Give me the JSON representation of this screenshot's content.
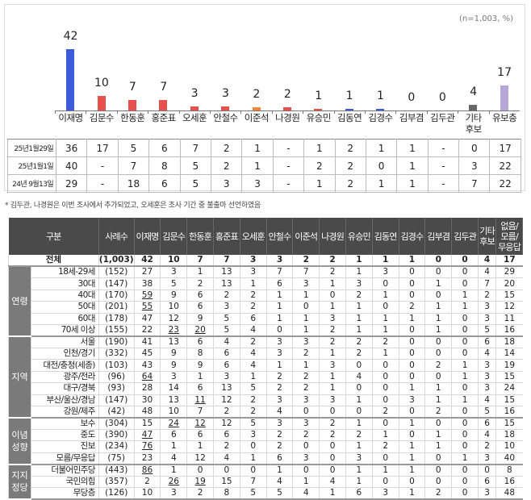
{
  "chart_data": {
    "type": "bar",
    "note": "(n=1,003, %)",
    "categories": [
      "이재명",
      "김문수",
      "한동훈",
      "홍준표",
      "오세훈",
      "안철수",
      "이준석",
      "나경원",
      "유승민",
      "김동연",
      "김경수",
      "김부겸",
      "김두관",
      "기타\n후보",
      "유보층"
    ],
    "values": [
      42,
      10,
      7,
      7,
      3,
      3,
      2,
      2,
      1,
      1,
      1,
      0,
      0,
      4,
      17
    ],
    "colors": [
      "#3b5bdb",
      "#e8504e",
      "#e8504e",
      "#e8504e",
      "#e8504e",
      "#e8504e",
      "#f0863a",
      "#e8504e",
      "#e8504e",
      "#3b5bdb",
      "#3b5bdb",
      "#e8504e",
      "#e8504e",
      "#666666",
      "#b7a6d8"
    ],
    "history": [
      {
        "label": "25년1월29일",
        "values": [
          "36",
          "17",
          "5",
          "6",
          "7",
          "2",
          "1",
          "-",
          "1",
          "2",
          "1",
          "1",
          "-",
          "0",
          "17"
        ]
      },
      {
        "label": "25년1월1일",
        "values": [
          "40",
          "-",
          "7",
          "8",
          "5",
          "2",
          "1",
          "-",
          "2",
          "2",
          "0",
          "1",
          "-",
          "3",
          "22"
        ]
      },
      {
        "label": "24년 9월13일",
        "values": [
          "29",
          "-",
          "18",
          "6",
          "5",
          "3",
          "3",
          "-",
          "1",
          "2",
          "1",
          "1",
          "-",
          "7",
          "22"
        ]
      }
    ]
  },
  "footnote": "* 김두관, 나경원은 이번 조사에서 추가되었고, 오세훈은 조사 기간 중 불출마 선언하였음",
  "table": {
    "headers": [
      "구분",
      "사례수",
      "이재명",
      "김문수",
      "한동훈",
      "홍준표",
      "오세훈",
      "안철수",
      "이준석",
      "나경원",
      "유승민",
      "김동연",
      "김경수",
      "김부겸",
      "김두관",
      "기타\n후보",
      "없음/\n모름/\n무응답"
    ],
    "total": {
      "label": "전체",
      "n": "(1,003)",
      "values": [
        "42",
        "10",
        "7",
        "7",
        "3",
        "3",
        "2",
        "2",
        "1",
        "1",
        "1",
        "0",
        "0",
        "4",
        "17"
      ]
    },
    "groups": [
      {
        "name": "연령",
        "rows": [
          {
            "label": "18세-29세",
            "n": "(152)",
            "values": [
              "27",
              "3",
              "1",
              "13",
              "3",
              "7",
              "7",
              "2",
              "1",
              "3",
              "0",
              "0",
              "0",
              "4",
              "29"
            ]
          },
          {
            "label": "30대",
            "n": "(147)",
            "values": [
              "38",
              "5",
              "2",
              "13",
              "1",
              "6",
              "3",
              "1",
              "3",
              "0",
              "0",
              "1",
              "0",
              "7",
              "20"
            ]
          },
          {
            "label": "40대",
            "n": "(170)",
            "values": [
              "59",
              "9",
              "6",
              "2",
              "2",
              "1",
              "1",
              "0",
              "2",
              "1",
              "0",
              "0",
              "1",
              "2",
              "15"
            ],
            "underline": [
              0
            ]
          },
          {
            "label": "50대",
            "n": "(201)",
            "values": [
              "55",
              "10",
              "6",
              "3",
              "2",
              "1",
              "0",
              "1",
              "1",
              "0",
              "2",
              "1",
              "1",
              "3",
              "12"
            ],
            "underline": [
              0
            ]
          },
          {
            "label": "60대",
            "n": "(178)",
            "values": [
              "47",
              "12",
              "9",
              "5",
              "6",
              "1",
              "1",
              "3",
              "1",
              "1",
              "1",
              "1",
              "0",
              "3",
              "11"
            ]
          },
          {
            "label": "70세 이상",
            "n": "(155)",
            "values": [
              "22",
              "23",
              "20",
              "5",
              "4",
              "0",
              "1",
              "2",
              "1",
              "1",
              "0",
              "1",
              "0",
              "5",
              "16"
            ],
            "underline": [
              1,
              2
            ]
          }
        ]
      },
      {
        "name": "지역",
        "rows": [
          {
            "label": "서울",
            "n": "(190)",
            "values": [
              "41",
              "13",
              "6",
              "4",
              "2",
              "3",
              "3",
              "2",
              "2",
              "2",
              "0",
              "0",
              "0",
              "6",
              "18"
            ]
          },
          {
            "label": "인천/경기",
            "n": "(332)",
            "values": [
              "45",
              "9",
              "8",
              "6",
              "4",
              "3",
              "2",
              "1",
              "2",
              "1",
              "0",
              "0",
              "0",
              "4",
              "14"
            ]
          },
          {
            "label": "대전/충청(세종)",
            "n": "(103)",
            "values": [
              "43",
              "9",
              "9",
              "6",
              "4",
              "1",
              "1",
              "3",
              "0",
              "0",
              "0",
              "2",
              "1",
              "3",
              "19"
            ]
          },
          {
            "label": "광주/전라",
            "n": "(96)",
            "values": [
              "64",
              "3",
              "1",
              "3",
              "1",
              "2",
              "2",
              "1",
              "4",
              "0",
              "0",
              "0",
              "1",
              "3",
              "15"
            ],
            "underline": [
              0
            ]
          },
          {
            "label": "대구/경북",
            "n": "(93)",
            "values": [
              "28",
              "14",
              "6",
              "13",
              "5",
              "2",
              "2",
              "1",
              "0",
              "0",
              "1",
              "1",
              "0",
              "3",
              "24"
            ]
          },
          {
            "label": "부산/울산/경남",
            "n": "(147)",
            "values": [
              "30",
              "13",
              "11",
              "12",
              "2",
              "3",
              "3",
              "3",
              "1",
              "0",
              "3",
              "1",
              "1",
              "4",
              "15"
            ],
            "underline": [
              2
            ]
          },
          {
            "label": "강원/제주",
            "n": "(42)",
            "values": [
              "48",
              "10",
              "7",
              "2",
              "2",
              "4",
              "0",
              "0",
              "0",
              "2",
              "0",
              "2",
              "0",
              "5",
              "16"
            ]
          }
        ]
      },
      {
        "name": "이념\n성향",
        "rows": [
          {
            "label": "보수",
            "n": "(304)",
            "values": [
              "15",
              "24",
              "12",
              "12",
              "5",
              "3",
              "3",
              "2",
              "1",
              "0",
              "1",
              "0",
              "0",
              "6",
              "15"
            ],
            "underline": [
              1,
              2
            ]
          },
          {
            "label": "중도",
            "n": "(390)",
            "values": [
              "47",
              "6",
              "6",
              "6",
              "3",
              "2",
              "2",
              "2",
              "2",
              "1",
              "0",
              "1",
              "0",
              "4",
              "18"
            ],
            "underline": [
              0
            ]
          },
          {
            "label": "진보",
            "n": "(234)",
            "values": [
              "76",
              "1",
              "1",
              "2",
              "0",
              "2",
              "0",
              "0",
              "1",
              "2",
              "1",
              "1",
              "0",
              "2",
              "10"
            ],
            "underline": [
              0
            ]
          },
          {
            "label": "모름/무응답",
            "n": "(75)",
            "values": [
              "23",
              "4",
              "12",
              "4",
              "1",
              "6",
              "3",
              "0",
              "3",
              "0",
              "1",
              "0",
              "1",
              "3",
              "40"
            ]
          }
        ]
      },
      {
        "name": "지지\n정당",
        "rows": [
          {
            "label": "더불어민주당",
            "n": "(443)",
            "values": [
              "86",
              "1",
              "0",
              "0",
              "0",
              "1",
              "0",
              "0",
              "1",
              "1",
              "1",
              "0",
              "0",
              "0",
              "8"
            ],
            "underline": [
              0
            ]
          },
          {
            "label": "국민의힘",
            "n": "(357)",
            "values": [
              "2",
              "26",
              "19",
              "15",
              "7",
              "4",
              "1",
              "4",
              "1",
              "0",
              "0",
              "0",
              "0",
              "6",
              "16"
            ],
            "underline": [
              1,
              2
            ]
          },
          {
            "label": "무당층",
            "n": "(126)",
            "values": [
              "10",
              "3",
              "2",
              "8",
              "5",
              "5",
              "4",
              "1",
              "6",
              "3",
              "1",
              "2",
              "0",
              "3",
              "48"
            ]
          }
        ]
      }
    ]
  }
}
